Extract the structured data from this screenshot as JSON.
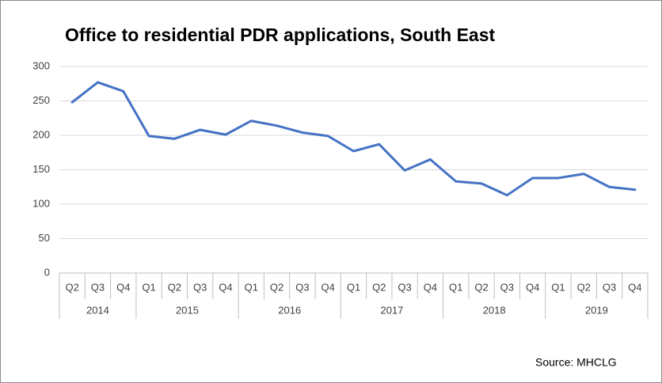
{
  "chart_data": {
    "type": "line",
    "title": "Office to residential PDR applications, South East",
    "source": "Source: MHCLG",
    "groups": [
      {
        "name": "2014",
        "categories": [
          "Q2",
          "Q3",
          "Q4"
        ]
      },
      {
        "name": "2015",
        "categories": [
          "Q1",
          "Q2",
          "Q3",
          "Q4"
        ]
      },
      {
        "name": "2016",
        "categories": [
          "Q1",
          "Q2",
          "Q3",
          "Q4"
        ]
      },
      {
        "name": "2017",
        "categories": [
          "Q1",
          "Q2",
          "Q3",
          "Q4"
        ]
      },
      {
        "name": "2018",
        "categories": [
          "Q1",
          "Q2",
          "Q3",
          "Q4"
        ]
      },
      {
        "name": "2019",
        "categories": [
          "Q1",
          "Q2",
          "Q3",
          "Q4"
        ]
      }
    ],
    "values": [
      248,
      277,
      264,
      199,
      195,
      208,
      201,
      221,
      214,
      204,
      199,
      177,
      187,
      149,
      165,
      133,
      130,
      113,
      138,
      138,
      144,
      125,
      121
    ],
    "color": "#4472c4",
    "ylim": [
      0,
      300
    ],
    "yticks": [
      0,
      50,
      100,
      150,
      200,
      250,
      300
    ],
    "grid": true
  }
}
